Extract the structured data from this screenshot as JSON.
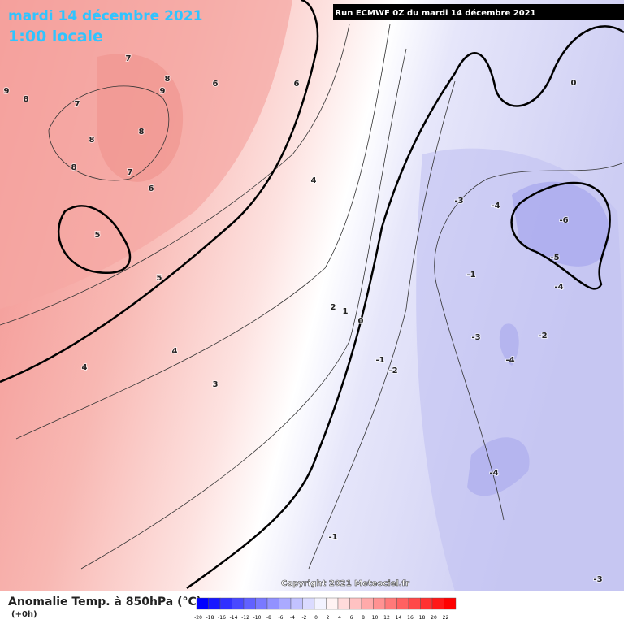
{
  "header": {
    "date": "mardi 14 décembre 2021",
    "time": "1:00 locale",
    "run": "Run ECMWF 0Z du mardi 14 décembre 2021"
  },
  "copyright": "Copyright 2021 Meteociel.fr",
  "footer": {
    "title": "Anomalie Temp. à 850hPa (°C)",
    "lead": "(+0h)"
  },
  "legend": {
    "labels": [
      -20,
      -18,
      -16,
      -14,
      -12,
      -10,
      -8,
      -6,
      -4,
      -2,
      0,
      2,
      4,
      6,
      8,
      10,
      12,
      14,
      16,
      18,
      20,
      22
    ]
  },
  "contour_labels": [
    "9",
    "8",
    "7",
    "7",
    "8",
    "9",
    "6",
    "6",
    "8",
    "8",
    "8",
    "7",
    "6",
    "5",
    "5",
    "4",
    "4",
    "4",
    "3",
    "2",
    "1",
    "0",
    "-1",
    "-2",
    "-1",
    "-3",
    "-4",
    "-6",
    "-5",
    "-4",
    "-3",
    "-2",
    "-4",
    "-4",
    "-1",
    "-3",
    "0"
  ]
}
